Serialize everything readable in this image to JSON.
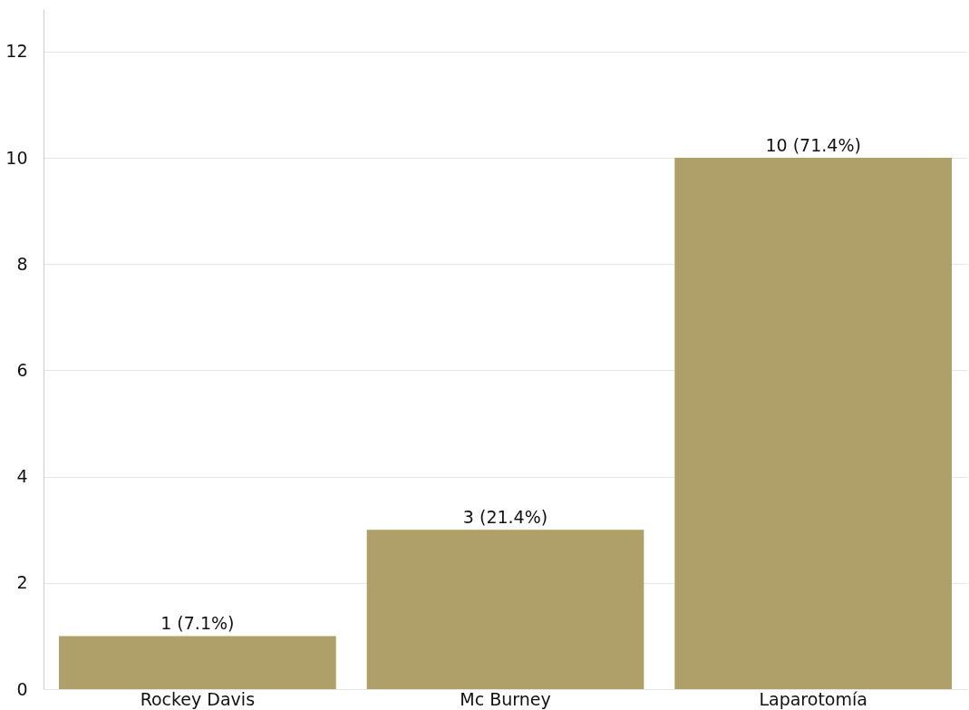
{
  "chart_data": {
    "type": "bar",
    "categories": [
      "Rockey Davis",
      "Mc Burney",
      "Laparotomía"
    ],
    "values": [
      1,
      3,
      10
    ],
    "color": "#af9f68",
    "value_labels": [
      "1 (7.1%)",
      "3 (21.4%)",
      "10 (71.4%)"
    ],
    "ylim": [
      0,
      12.8
    ],
    "yticks": [
      0,
      2,
      4,
      6,
      8,
      10,
      12
    ],
    "grid": "y"
  }
}
